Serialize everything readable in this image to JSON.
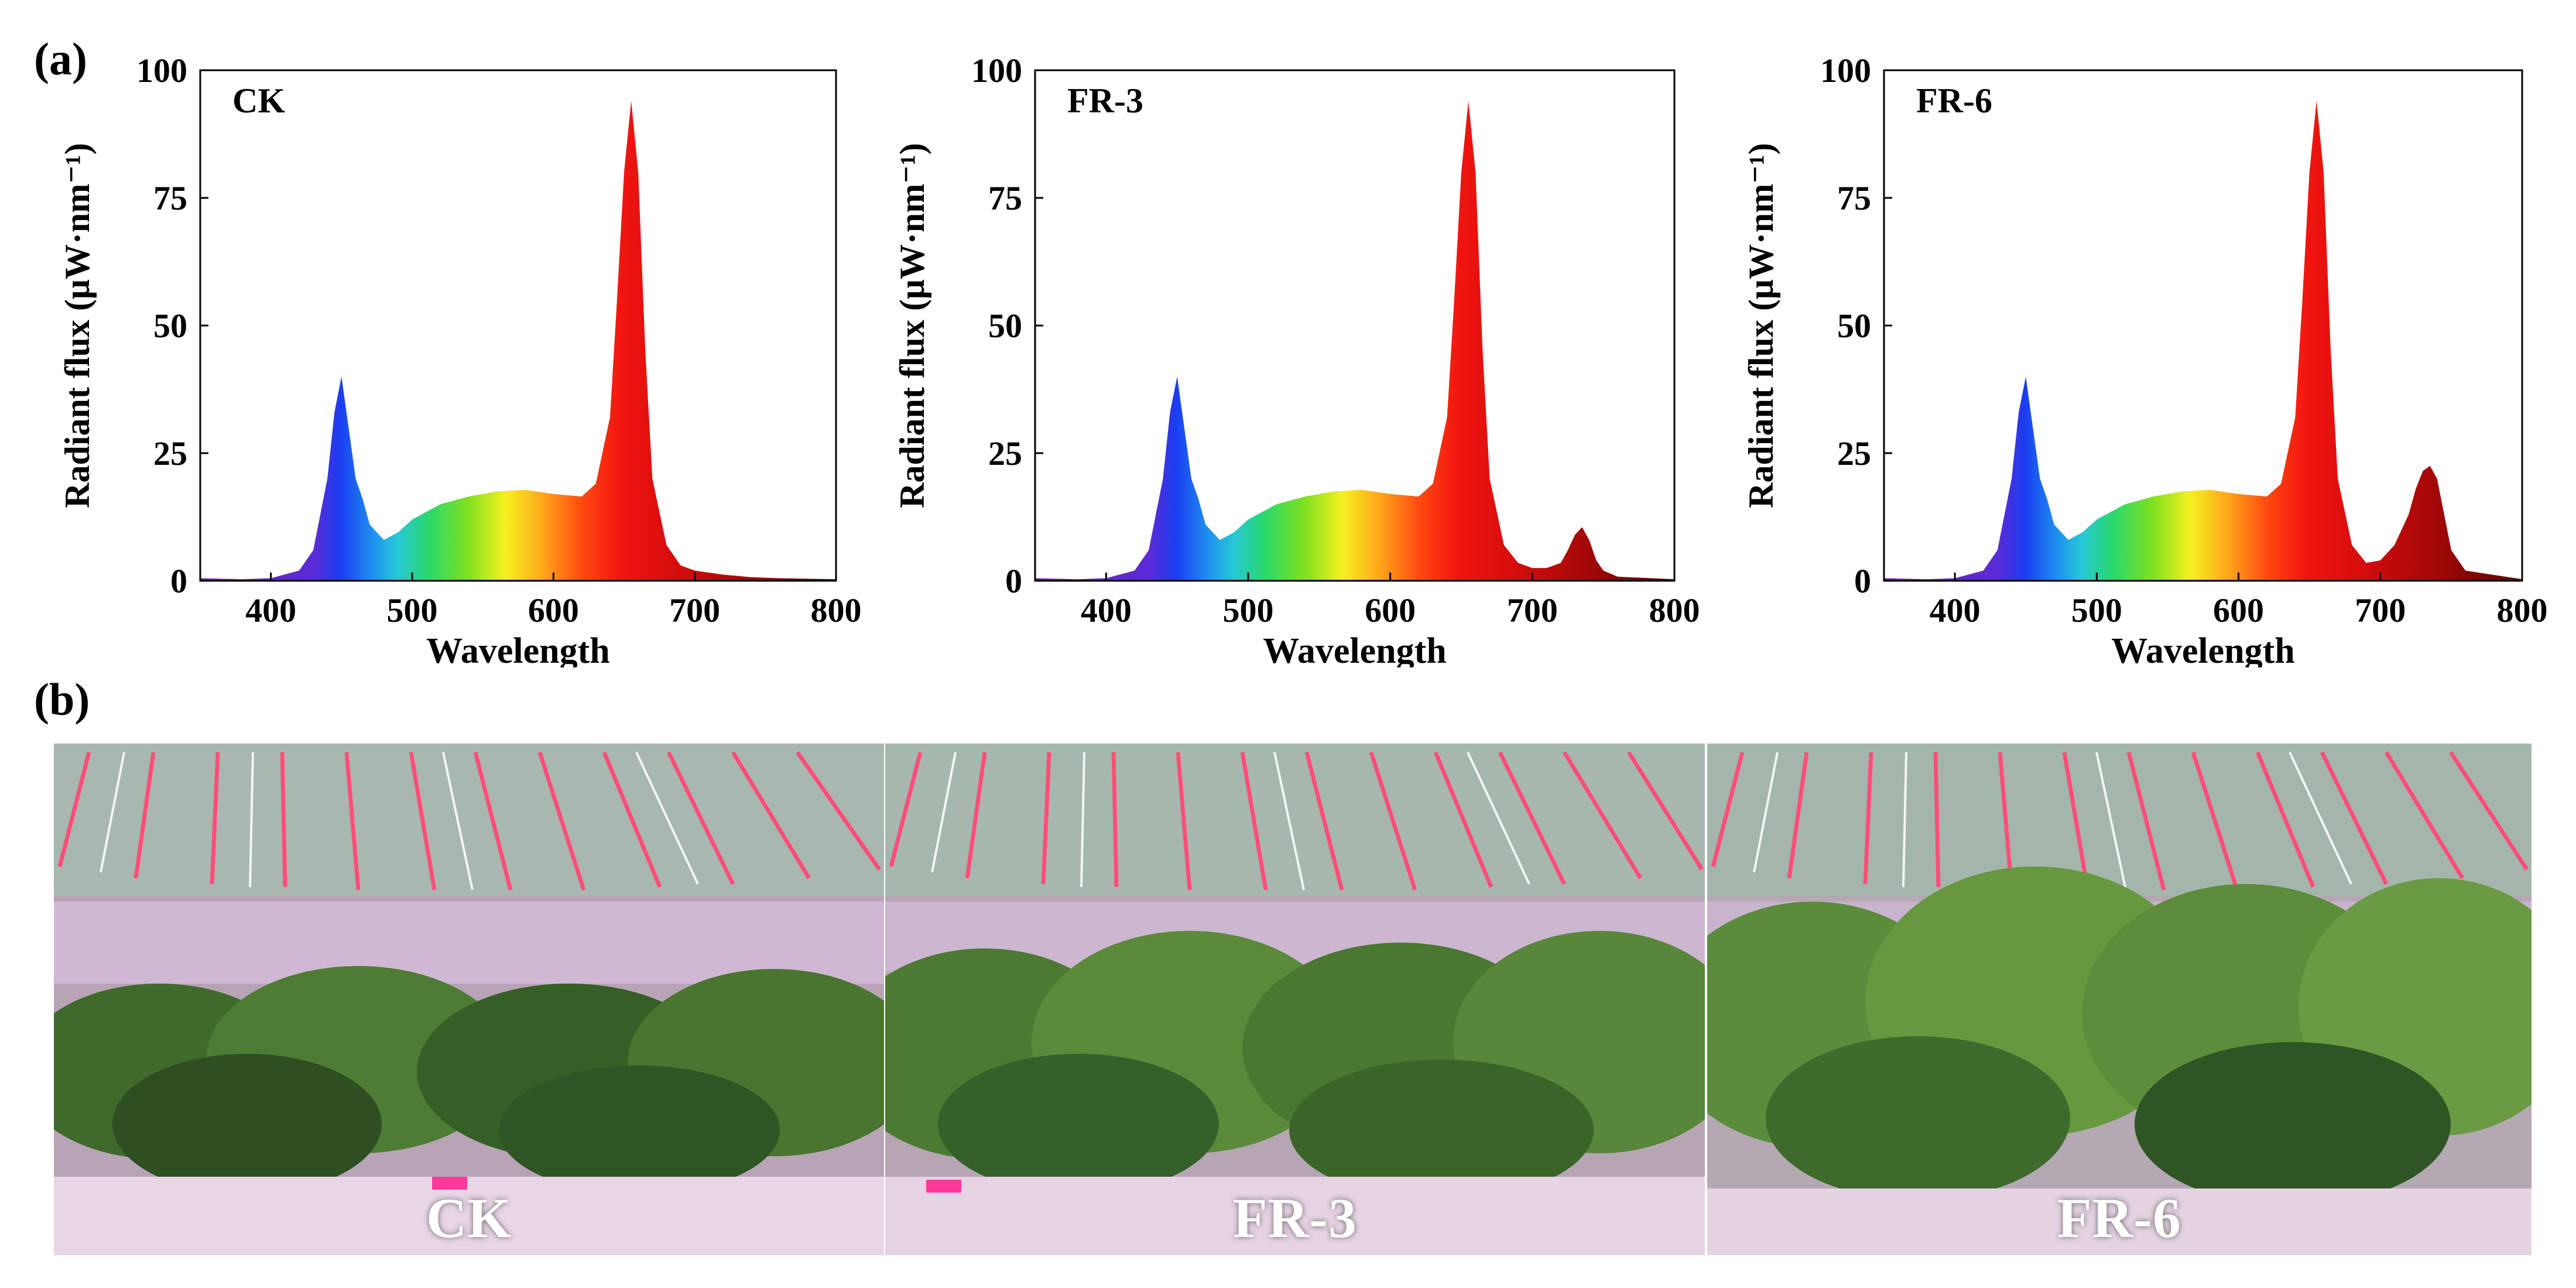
{
  "figure": {
    "panel_a_label": "(a)",
    "panel_b_label": "(b)"
  },
  "colors": {
    "background": "#ffffff",
    "axis": "#000000",
    "photo_label": "#ffffff"
  },
  "chart_data": [
    {
      "type": "area",
      "title": "CK",
      "xlabel": "Wavelength",
      "ylabel": "Radiant flux (μW·nm⁻¹)",
      "xlim": [
        350,
        800
      ],
      "ylim": [
        0,
        100
      ],
      "xticks": [
        400,
        500,
        600,
        700,
        800
      ],
      "yticks": [
        0,
        25,
        50,
        75,
        100
      ],
      "x": [
        350,
        380,
        400,
        420,
        430,
        440,
        445,
        450,
        455,
        460,
        465,
        470,
        480,
        490,
        500,
        520,
        540,
        560,
        580,
        600,
        620,
        630,
        640,
        645,
        650,
        655,
        660,
        665,
        670,
        680,
        690,
        700,
        720,
        740,
        760,
        800
      ],
      "values": [
        0.5,
        0.3,
        0.5,
        2,
        6,
        20,
        33,
        40,
        30,
        20,
        16,
        11,
        8,
        9.5,
        12,
        15,
        16.5,
        17.5,
        17.8,
        17,
        16.5,
        19,
        32,
        55,
        80,
        94,
        80,
        45,
        20,
        7,
        3,
        2,
        1.2,
        0.7,
        0.5,
        0.3
      ]
    },
    {
      "type": "area",
      "title": "FR-3",
      "xlabel": "Wavelength",
      "ylabel": "Radiant flux (μW·nm⁻¹)",
      "xlim": [
        350,
        800
      ],
      "ylim": [
        0,
        100
      ],
      "xticks": [
        400,
        500,
        600,
        700,
        800
      ],
      "yticks": [
        0,
        25,
        50,
        75,
        100
      ],
      "x": [
        350,
        380,
        400,
        420,
        430,
        440,
        445,
        450,
        455,
        460,
        465,
        470,
        480,
        490,
        500,
        520,
        540,
        560,
        580,
        600,
        620,
        630,
        640,
        645,
        650,
        655,
        660,
        665,
        670,
        680,
        690,
        700,
        710,
        720,
        725,
        730,
        735,
        740,
        745,
        750,
        760,
        800
      ],
      "values": [
        0.5,
        0.3,
        0.5,
        2,
        6,
        20,
        33,
        40,
        30,
        20,
        16,
        11,
        8,
        9.5,
        12,
        15,
        16.5,
        17.5,
        17.8,
        17,
        16.5,
        19,
        32,
        55,
        80,
        94,
        80,
        45,
        20,
        7,
        3.5,
        2.5,
        2.5,
        3.5,
        6,
        9,
        10.5,
        8,
        4,
        2,
        0.8,
        0.3
      ]
    },
    {
      "type": "area",
      "title": "FR-6",
      "xlabel": "Wavelength",
      "ylabel": "Radiant flux (μW·nm⁻¹)",
      "xlim": [
        350,
        800
      ],
      "ylim": [
        0,
        100
      ],
      "xticks": [
        400,
        500,
        600,
        700,
        800
      ],
      "yticks": [
        0,
        25,
        50,
        75,
        100
      ],
      "x": [
        350,
        380,
        400,
        420,
        430,
        440,
        445,
        450,
        455,
        460,
        465,
        470,
        480,
        490,
        500,
        520,
        540,
        560,
        580,
        600,
        620,
        630,
        640,
        645,
        650,
        655,
        660,
        665,
        670,
        680,
        690,
        700,
        710,
        720,
        725,
        730,
        735,
        740,
        745,
        750,
        760,
        800
      ],
      "values": [
        0.5,
        0.3,
        0.5,
        2,
        6,
        20,
        33,
        40,
        30,
        20,
        16,
        11,
        8,
        9.5,
        12,
        15,
        16.5,
        17.5,
        17.8,
        17,
        16.5,
        19,
        32,
        55,
        80,
        94,
        80,
        45,
        20,
        7,
        3.5,
        4,
        7,
        13,
        18,
        21.5,
        22.5,
        20,
        13,
        6,
        2,
        0.3
      ]
    }
  ],
  "photos": [
    {
      "label": "CK"
    },
    {
      "label": "FR-3"
    },
    {
      "label": "FR-6"
    }
  ]
}
